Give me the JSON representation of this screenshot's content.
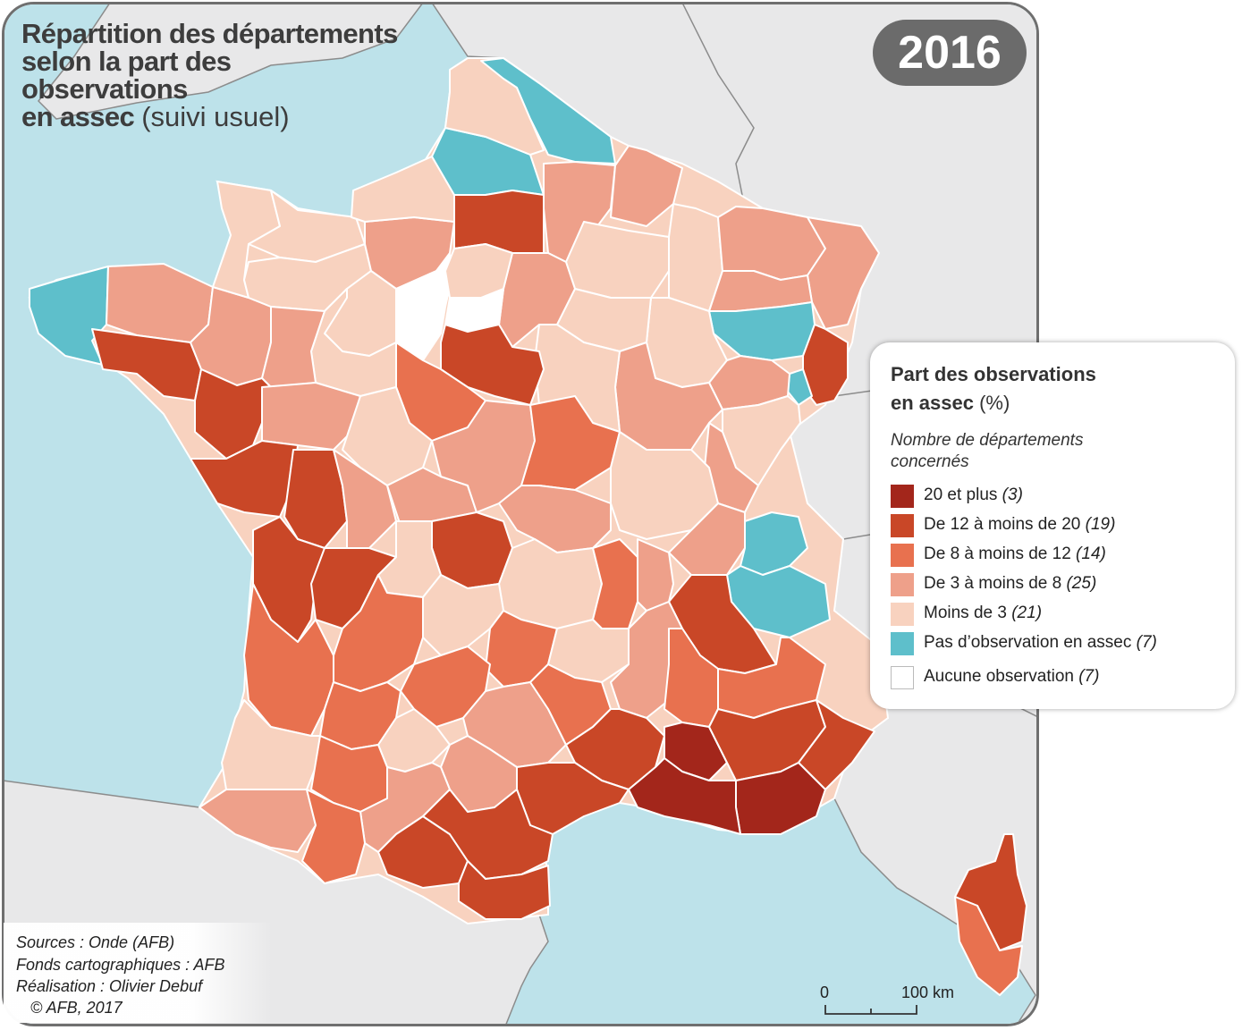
{
  "title": {
    "line1": "Répartition des départements",
    "line2": "selon la part des",
    "line3": "observations",
    "line4_bold": "en assec",
    "line4_light": "(suivi usuel)"
  },
  "year": "2016",
  "legend": {
    "title_line1": "Part des observations",
    "title_line2_bold": "en assec",
    "title_line2_unit": "(%)",
    "subtitle_line1": "Nombre de départements",
    "subtitle_line2": "concernés",
    "classes": [
      {
        "label": "20 et plus",
        "count": "(3)",
        "color": "#a3261b"
      },
      {
        "label": "De 12 à moins de 20",
        "count": "(19)",
        "color": "#c94727"
      },
      {
        "label": "De 8 à moins de 12",
        "count": "(14)",
        "color": "#e8714f"
      },
      {
        "label": "De 3 à moins de 8",
        "count": "(25)",
        "color": "#eea08a"
      },
      {
        "label": "Moins de 3",
        "count": "(21)",
        "color": "#f8d2bf"
      },
      {
        "label": "Pas d’observation en assec",
        "count": "(7)",
        "color": "#5ebfcb"
      },
      {
        "label": "Aucune observation",
        "count": "(7)",
        "color": "#ffffff"
      }
    ]
  },
  "scale": {
    "start": "0",
    "end": "100 km"
  },
  "credits": {
    "sources": "Sources : Onde (AFB)",
    "fonds": "Fonds cartographiques : AFB",
    "realisation": " Réalisation : Olivier Debuf",
    "copyright": "© AFB, 2017"
  },
  "colors": {
    "sea": "#bde2ea",
    "neighbor_land": "#e8e8e9",
    "border_line": "#8c8c8c",
    "frame": "#6f6f6f"
  }
}
